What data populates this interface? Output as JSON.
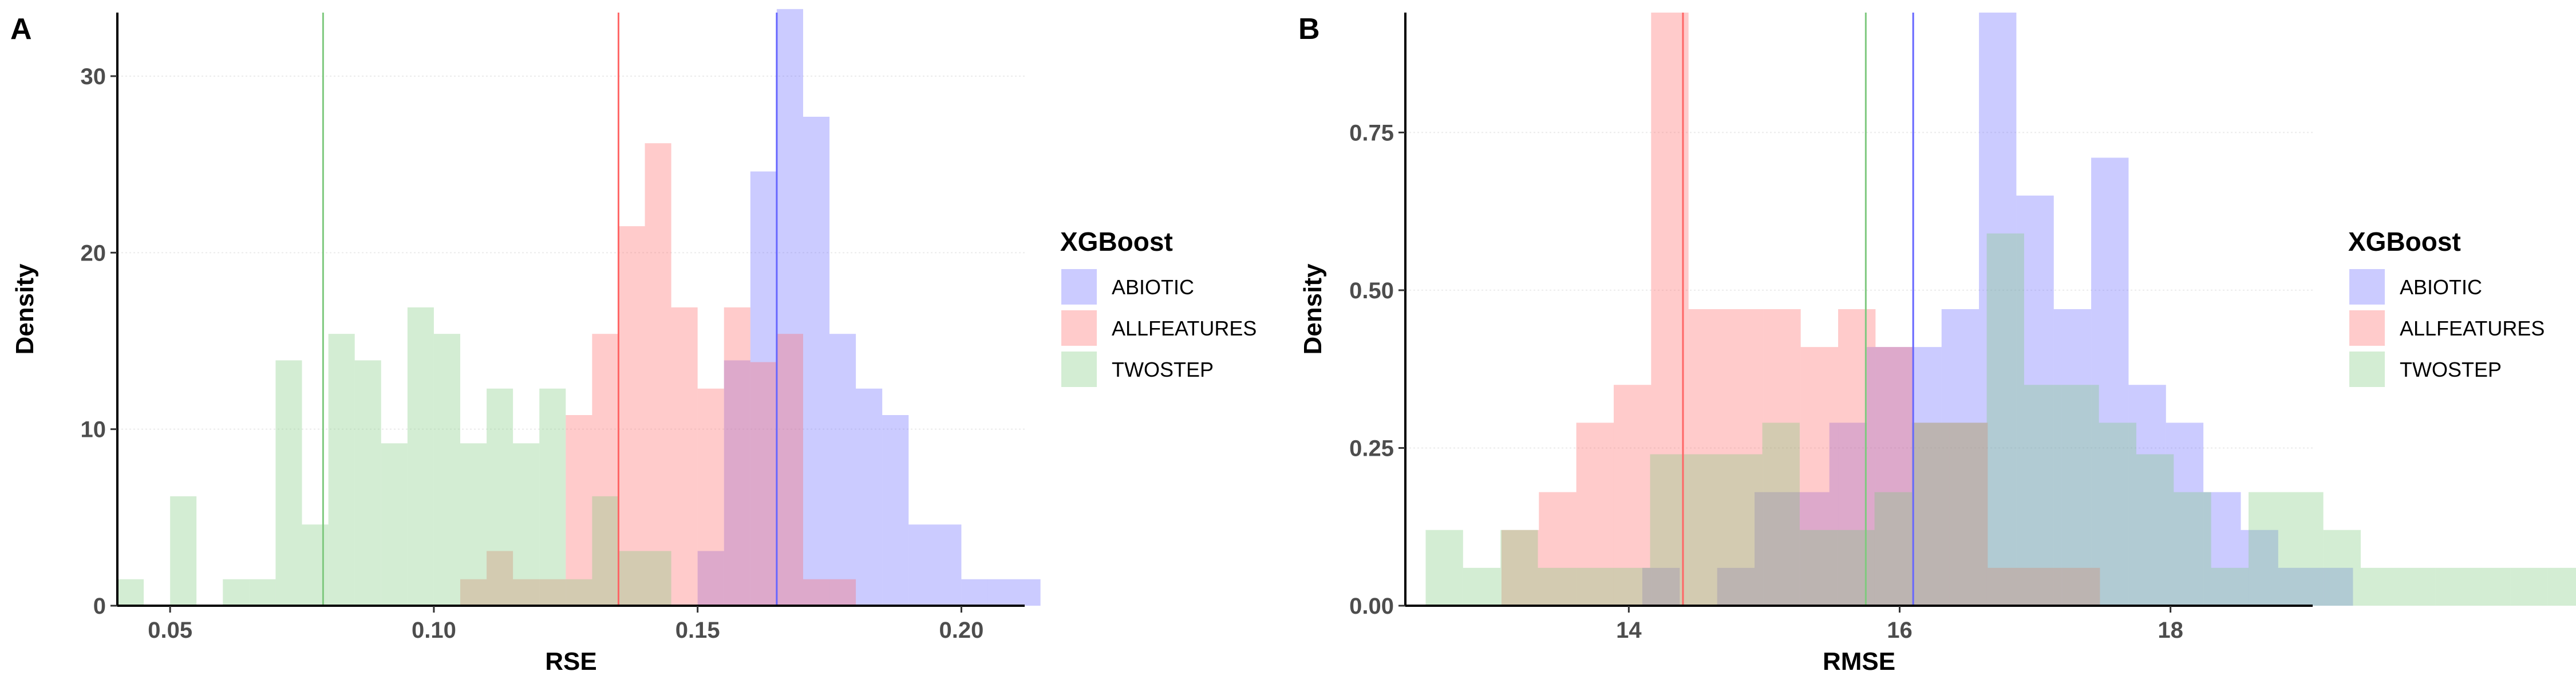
{
  "chart_data": [
    {
      "panel_label": "A",
      "type": "histogram",
      "xlabel": "RSE",
      "ylabel": "Density",
      "xlim": [
        0.04,
        0.212
      ],
      "ylim": [
        0,
        33.6
      ],
      "xticks": [
        0.05,
        0.1,
        0.15,
        0.2
      ],
      "xtick_labels": [
        "0.05",
        "0.10",
        "0.15",
        "0.20"
      ],
      "yticks": [
        0,
        10,
        20,
        30
      ],
      "ytick_labels": [
        "0",
        "10",
        "20",
        "30"
      ],
      "grid": "horizontal",
      "legend": {
        "title": "XGBoost",
        "placement": "right",
        "entries": [
          "ABIOTIC",
          "ALLFEATURES",
          "TWOSTEP"
        ]
      },
      "series": [
        {
          "name": "ABIOTIC",
          "color": "#6666ff",
          "bin_width": 0.005,
          "bin_start": 0.15,
          "values": [
            3.1,
            13.9,
            24.6,
            33.8,
            27.7,
            15.4,
            12.3,
            10.8,
            4.6,
            4.6,
            1.5,
            1.5,
            1.5
          ],
          "mean": 0.165
        },
        {
          "name": "ALLFEATURES",
          "color": "#ff6666",
          "bin_width": 0.005,
          "bin_start": 0.105,
          "values": [
            1.5,
            3.1,
            1.5,
            1.5,
            10.8,
            15.4,
            21.5,
            26.2,
            16.9,
            12.3,
            16.9,
            13.8,
            15.4,
            1.5,
            1.5
          ],
          "mean": 0.135
        },
        {
          "name": "TWOSTEP",
          "color": "#7fc97f",
          "bin_width": 0.005,
          "bin_start": 0.04,
          "values": [
            1.5,
            0,
            6.2,
            0,
            1.5,
            1.5,
            13.9,
            4.6,
            15.4,
            13.9,
            9.2,
            16.9,
            15.4,
            9.2,
            12.3,
            9.2,
            12.3,
            1.5,
            6.2,
            3.1,
            3.1,
            0,
            0,
            0,
            0,
            0,
            0,
            0,
            0,
            0,
            0,
            0,
            0
          ],
          "mean": 0.079
        }
      ]
    },
    {
      "panel_label": "B",
      "type": "histogram",
      "xlabel": "RMSE",
      "ylabel": "Density",
      "xlim": [
        12.35,
        19.05
      ],
      "ylim": [
        0,
        0.94
      ],
      "xticks": [
        14,
        16,
        18
      ],
      "xtick_labels": [
        "14",
        "16",
        "18"
      ],
      "yticks": [
        0.0,
        0.25,
        0.5,
        0.75
      ],
      "ytick_labels": [
        "0.00",
        "0.25",
        "0.50",
        "0.75"
      ],
      "grid": "horizontal",
      "legend": {
        "title": "XGBoost",
        "placement": "right",
        "entries": [
          "ABIOTIC",
          "ALLFEATURES",
          "TWOSTEP"
        ]
      },
      "series": [
        {
          "name": "ABIOTIC",
          "color": "#6666ff",
          "bin_width": 0.2762,
          "bin_start": 14.1,
          "values": [
            0.06,
            0,
            0.06,
            0.18,
            0.18,
            0.29,
            0.41,
            0.41,
            0.47,
            0.94,
            0.65,
            0.47,
            0.71,
            0.35,
            0.29,
            0.18,
            0.12,
            0.06,
            0.06
          ],
          "mean": 16.1
        },
        {
          "name": "ALLFEATURES",
          "color": "#ff6666",
          "bin_width": 0.2762,
          "bin_start": 13.06,
          "values": [
            0.12,
            0.18,
            0.29,
            0.35,
            0.94,
            0.47,
            0.47,
            0.47,
            0.41,
            0.47,
            0.41,
            0.29,
            0.29,
            0.06,
            0.06,
            0.06
          ],
          "mean": 14.4
        },
        {
          "name": "TWOSTEP",
          "color": "#7fc97f",
          "bin_width": 0.2762,
          "bin_start": 12.5,
          "values": [
            0.12,
            0.06,
            0.12,
            0.06,
            0.06,
            0.06,
            0.24,
            0.24,
            0.24,
            0.29,
            0.12,
            0.12,
            0.18,
            0.29,
            0.29,
            0.59,
            0.35,
            0.35,
            0.29,
            0.24,
            0.18,
            0.06,
            0.18,
            0.18,
            0.12,
            0.06,
            0.06,
            0.06,
            0.06,
            0.06,
            0.06,
            0.06
          ],
          "mean": 15.75
        }
      ]
    }
  ]
}
